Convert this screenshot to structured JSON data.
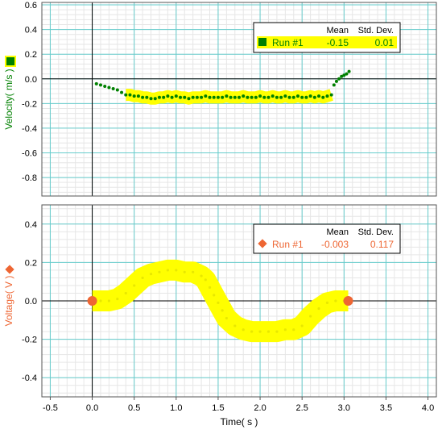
{
  "chart_data": [
    {
      "type": "scatter",
      "ylabel": "Velocity( m/s )",
      "xlim": [
        -0.6,
        4.1
      ],
      "ylim": [
        -0.95,
        0.62
      ],
      "yticks": [
        "0.6",
        "0.4",
        "0.2",
        "0.0",
        "-0.2",
        "-0.4",
        "-0.6",
        "-0.8"
      ],
      "grid": true,
      "legend": {
        "position": "top-right",
        "headers": [
          "Mean",
          "Std. Dev."
        ],
        "entries": [
          {
            "name": "Run #1",
            "mean": "-0.15",
            "std": "0.01",
            "color": "#008000"
          }
        ]
      },
      "axis_marker_color": "#008000",
      "series": [
        {
          "name": "Run #1",
          "color": "#008000",
          "highlight_color": "#ffff00",
          "x": [
            0.05,
            0.1,
            0.15,
            0.2,
            0.25,
            0.3,
            0.35,
            0.4,
            0.45,
            0.5,
            0.55,
            0.6,
            0.65,
            0.7,
            0.75,
            0.8,
            0.85,
            0.9,
            0.95,
            1.0,
            1.05,
            1.1,
            1.15,
            1.2,
            1.25,
            1.3,
            1.35,
            1.4,
            1.45,
            1.5,
            1.55,
            1.6,
            1.65,
            1.7,
            1.75,
            1.8,
            1.85,
            1.9,
            1.95,
            2.0,
            2.05,
            2.1,
            2.15,
            2.2,
            2.25,
            2.3,
            2.35,
            2.4,
            2.45,
            2.5,
            2.55,
            2.6,
            2.65,
            2.7,
            2.75,
            2.8,
            2.85,
            2.88,
            2.91,
            2.94,
            2.97,
            3.0,
            3.03,
            3.06
          ],
          "y": [
            -0.04,
            -0.05,
            -0.06,
            -0.07,
            -0.08,
            -0.09,
            -0.11,
            -0.13,
            -0.13,
            -0.14,
            -0.14,
            -0.15,
            -0.15,
            -0.16,
            -0.16,
            -0.15,
            -0.15,
            -0.14,
            -0.15,
            -0.14,
            -0.15,
            -0.15,
            -0.16,
            -0.15,
            -0.15,
            -0.15,
            -0.14,
            -0.15,
            -0.15,
            -0.15,
            -0.15,
            -0.14,
            -0.15,
            -0.15,
            -0.15,
            -0.14,
            -0.15,
            -0.15,
            -0.15,
            -0.14,
            -0.15,
            -0.15,
            -0.14,
            -0.15,
            -0.15,
            -0.14,
            -0.15,
            -0.15,
            -0.14,
            -0.15,
            -0.15,
            -0.14,
            -0.15,
            -0.14,
            -0.15,
            -0.14,
            -0.13,
            -0.05,
            -0.02,
            0.0,
            0.02,
            0.03,
            0.04,
            0.06
          ],
          "highlight_x": [
            0.4,
            2.85
          ]
        }
      ]
    },
    {
      "type": "scatter",
      "xlabel": "Time( s )",
      "ylabel": "Voltage( V )",
      "xlim": [
        -0.6,
        4.1
      ],
      "ylim": [
        -0.5,
        0.5
      ],
      "xticks": [
        "-0.5",
        "0.0",
        "0.5",
        "1.0",
        "1.5",
        "2.0",
        "2.5",
        "3.0",
        "3.5",
        "4.0"
      ],
      "yticks": [
        "0.4",
        "0.2",
        "0.0",
        "-0.2",
        "-0.4"
      ],
      "grid": true,
      "legend": {
        "position": "top-right",
        "headers": [
          "Mean",
          "Std. Dev."
        ],
        "entries": [
          {
            "name": "Run #1",
            "mean": "-0.003",
            "std": "0.117",
            "color": "#ee6633"
          }
        ]
      },
      "axis_marker_color": "#ee6633",
      "series": [
        {
          "name": "Run #1",
          "color": "#ee6633",
          "highlight_color": "#ffff00",
          "x": [
            0.0,
            0.1,
            0.2,
            0.3,
            0.4,
            0.5,
            0.6,
            0.7,
            0.8,
            0.9,
            1.0,
            1.1,
            1.2,
            1.3,
            1.35,
            1.4,
            1.45,
            1.5,
            1.55,
            1.6,
            1.7,
            1.8,
            1.9,
            2.0,
            2.1,
            2.2,
            2.3,
            2.4,
            2.5,
            2.6,
            2.7,
            2.8,
            2.9,
            3.0,
            3.05
          ],
          "y": [
            0.0,
            0.0,
            0.0,
            0.01,
            0.04,
            0.08,
            0.12,
            0.14,
            0.15,
            0.16,
            0.16,
            0.15,
            0.15,
            0.13,
            0.11,
            0.07,
            0.03,
            -0.01,
            -0.05,
            -0.09,
            -0.13,
            -0.15,
            -0.16,
            -0.16,
            -0.16,
            -0.16,
            -0.15,
            -0.15,
            -0.13,
            -0.08,
            -0.04,
            -0.01,
            0.0,
            0.0,
            0.0
          ],
          "highlight_x": [
            0.0,
            3.05
          ]
        }
      ]
    }
  ]
}
